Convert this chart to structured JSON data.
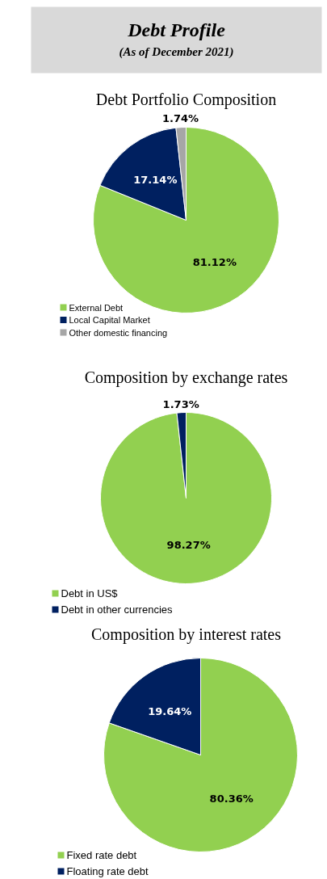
{
  "chart_data": [
    {
      "type": "pie",
      "annotations": [
        "Debt Profile",
        "(As of December 2021)"
      ],
      "title": "Debt Portfolio Composition",
      "categories": [
        "External Debt",
        "Local Capital Market",
        "Other domestic financing"
      ],
      "values": [
        81.12,
        17.14,
        1.74
      ],
      "value_labels": [
        "81.12%",
        "17.14%",
        "1.74%"
      ],
      "colors": [
        "#92d050",
        "#002060",
        "#a6a6a6"
      ],
      "legend": "bottom left"
    },
    {
      "type": "pie",
      "title": "Composition by exchange rates",
      "categories": [
        "Debt in US$",
        "Debt in other currencies"
      ],
      "values": [
        98.27,
        1.73
      ],
      "value_labels": [
        "98.27%",
        "1.73%"
      ],
      "colors": [
        "#92d050",
        "#002060"
      ],
      "legend": "bottom left"
    },
    {
      "type": "pie",
      "title": "Composition by interest rates",
      "categories": [
        "Fixed rate debt",
        "Floating rate debt"
      ],
      "values": [
        80.36,
        19.64
      ],
      "value_labels": [
        "80.36%",
        "19.64%"
      ],
      "colors": [
        "#92d050",
        "#002060"
      ],
      "legend": "bottom left"
    }
  ]
}
